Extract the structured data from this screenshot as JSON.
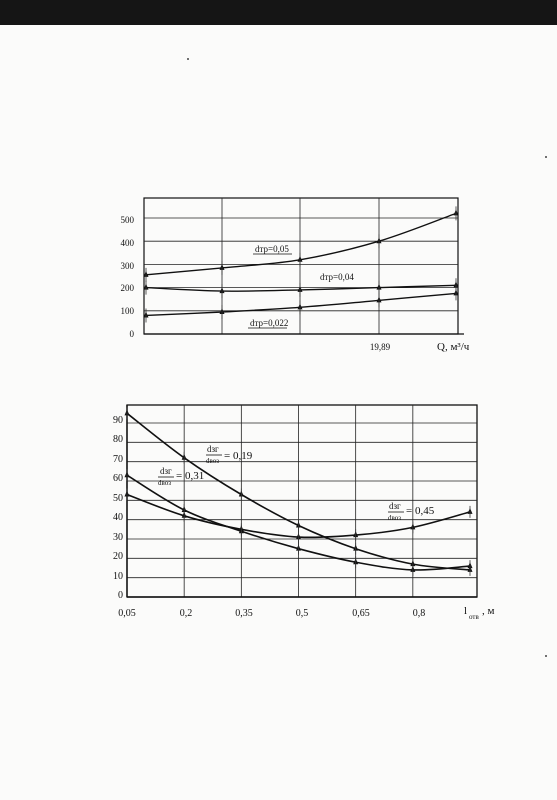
{
  "chart_data": [
    {
      "type": "line",
      "title": "",
      "xlabel": "Q, м³/ч",
      "ylabel": "",
      "ylim": [
        0,
        500
      ],
      "yticks": [
        "0",
        "100",
        "200",
        "300",
        "400",
        "500"
      ],
      "xtick_labels": [
        "19,89"
      ],
      "grid": true,
      "series": [
        {
          "name": "dтр=0,05",
          "x": [
            0,
            1,
            2,
            3,
            4
          ],
          "values": [
            255,
            285,
            320,
            400,
            520
          ]
        },
        {
          "name": "dтр=0,04",
          "x": [
            0,
            1,
            2,
            3,
            4
          ],
          "values": [
            200,
            185,
            190,
            200,
            210
          ]
        },
        {
          "name": "dтр=0,022",
          "x": [
            0,
            1,
            2,
            3,
            4
          ],
          "values": [
            80,
            95,
            115,
            145,
            175
          ]
        }
      ]
    },
    {
      "type": "line",
      "title": "",
      "xlabel": "lотв, м",
      "ylabel": "",
      "ylim": [
        0,
        100
      ],
      "yticks": [
        "0",
        "10",
        "20",
        "30",
        "40",
        "50",
        "60",
        "70",
        "80",
        "90"
      ],
      "categories": [
        "0,05",
        "0,2",
        "0,35",
        "0,5",
        "0,65",
        "0,8"
      ],
      "grid": true,
      "series": [
        {
          "name": "dзг/dвоз = 0,19",
          "x": [
            0.05,
            0.2,
            0.35,
            0.5,
            0.65,
            0.8,
            0.95
          ],
          "values": [
            95,
            72,
            53,
            37,
            25,
            17,
            14
          ]
        },
        {
          "name": "dзг/dвоз = 0,31",
          "x": [
            0.05,
            0.2,
            0.35,
            0.5,
            0.65,
            0.8,
            0.95
          ],
          "values": [
            63,
            45,
            34,
            25,
            18,
            14,
            16
          ]
        },
        {
          "name": "dзг/dвоз = 0,45",
          "x": [
            0.05,
            0.2,
            0.35,
            0.5,
            0.65,
            0.8,
            0.95
          ],
          "values": [
            53,
            42,
            35,
            31,
            32,
            36,
            44
          ]
        }
      ],
      "label_parts": [
        {
          "num": "dзг",
          "den": "dвоз",
          "value": "= 0,19"
        },
        {
          "num": "dзг",
          "den": "dвоз",
          "value": "= 0,31"
        },
        {
          "num": "dзг",
          "den": "dвоз",
          "value": "= 0,45"
        }
      ],
      "xlabel_parts": {
        "main": "l",
        "sub": "отв",
        "unit": ", м"
      }
    }
  ]
}
